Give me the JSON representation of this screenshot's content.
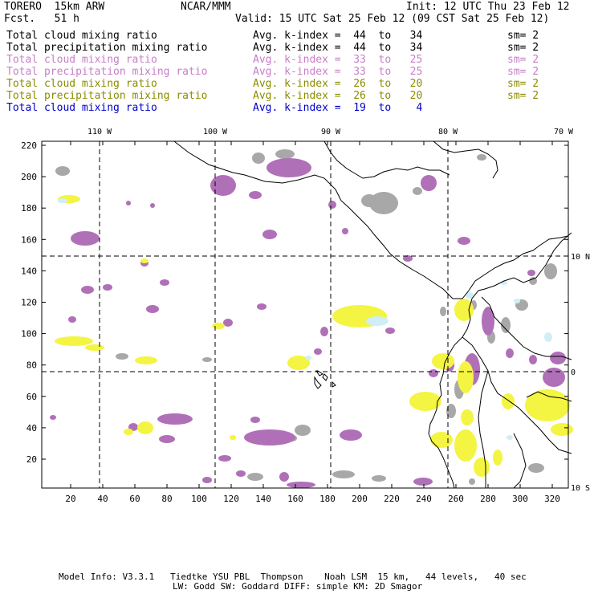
{
  "header": {
    "model": "TORERO  15km ARW",
    "org": "NCAR/MMM",
    "init": "Init: 12 UTC Thu 23 Feb 12",
    "fcst": "Fcst.   51 h",
    "valid": "Valid: 15 UTC Sat 25 Feb 12 (09 CST Sat 25 Feb 12)"
  },
  "legend": [
    {
      "name": "Total cloud mixing ratio",
      "k": "Avg. k-index =  44  to   34",
      "sm": "sm= 2",
      "color": "#000000"
    },
    {
      "name": "Total precipitation mixing ratio",
      "k": "Avg. k-index =  44  to   34",
      "sm": "sm= 2",
      "color": "#000000"
    },
    {
      "name": "Total cloud mixing ratio",
      "k": "Avg. k-index =  33  to   25",
      "sm": "sm= 2",
      "color": "#c77fc7"
    },
    {
      "name": "Total precipitation mixing ratio",
      "k": "Avg. k-index =  33  to   25",
      "sm": "sm= 2",
      "color": "#c77fc7"
    },
    {
      "name": "Total cloud mixing ratio",
      "k": "Avg. k-index =  26  to   20",
      "sm": "sm= 2",
      "color": "#8c8c00"
    },
    {
      "name": "Total precipitation mixing ratio",
      "k": "Avg. k-index =  26  to   20",
      "sm": "sm= 2",
      "color": "#8c8c00"
    },
    {
      "name": "Total cloud mixing ratio",
      "k": "Avg. k-index =  19  to    4",
      "sm": "",
      "color": "#0000cc"
    }
  ],
  "map": {
    "lon_labels": [
      "110 W",
      "100 W",
      "90 W",
      "80 W",
      "70 W"
    ],
    "lat_labels": [
      "10 N",
      "0",
      "10 S"
    ],
    "x_ticks": [
      "20",
      "40",
      "60",
      "80",
      "100",
      "120",
      "140",
      "160",
      "180",
      "200",
      "220",
      "240",
      "260",
      "280",
      "300",
      "320"
    ],
    "y_ticks": [
      "220",
      "200",
      "180",
      "160",
      "140",
      "120",
      "100",
      "80",
      "60",
      "40",
      "20"
    ],
    "colors": {
      "gray": "#a8a8a8",
      "purple": "#b070b8",
      "yellow": "#f4f442",
      "lightblue": "#cfeef6",
      "coast": "#000000"
    }
  },
  "footer": {
    "line1": "Model Info: V3.3.1   Tiedtke YSU PBL  Thompson    Noah LSM  15 km,   44 levels,   40 sec",
    "line2": "LW: Godd SW: Goddard DIFF: simple KM: 2D Smagor"
  }
}
